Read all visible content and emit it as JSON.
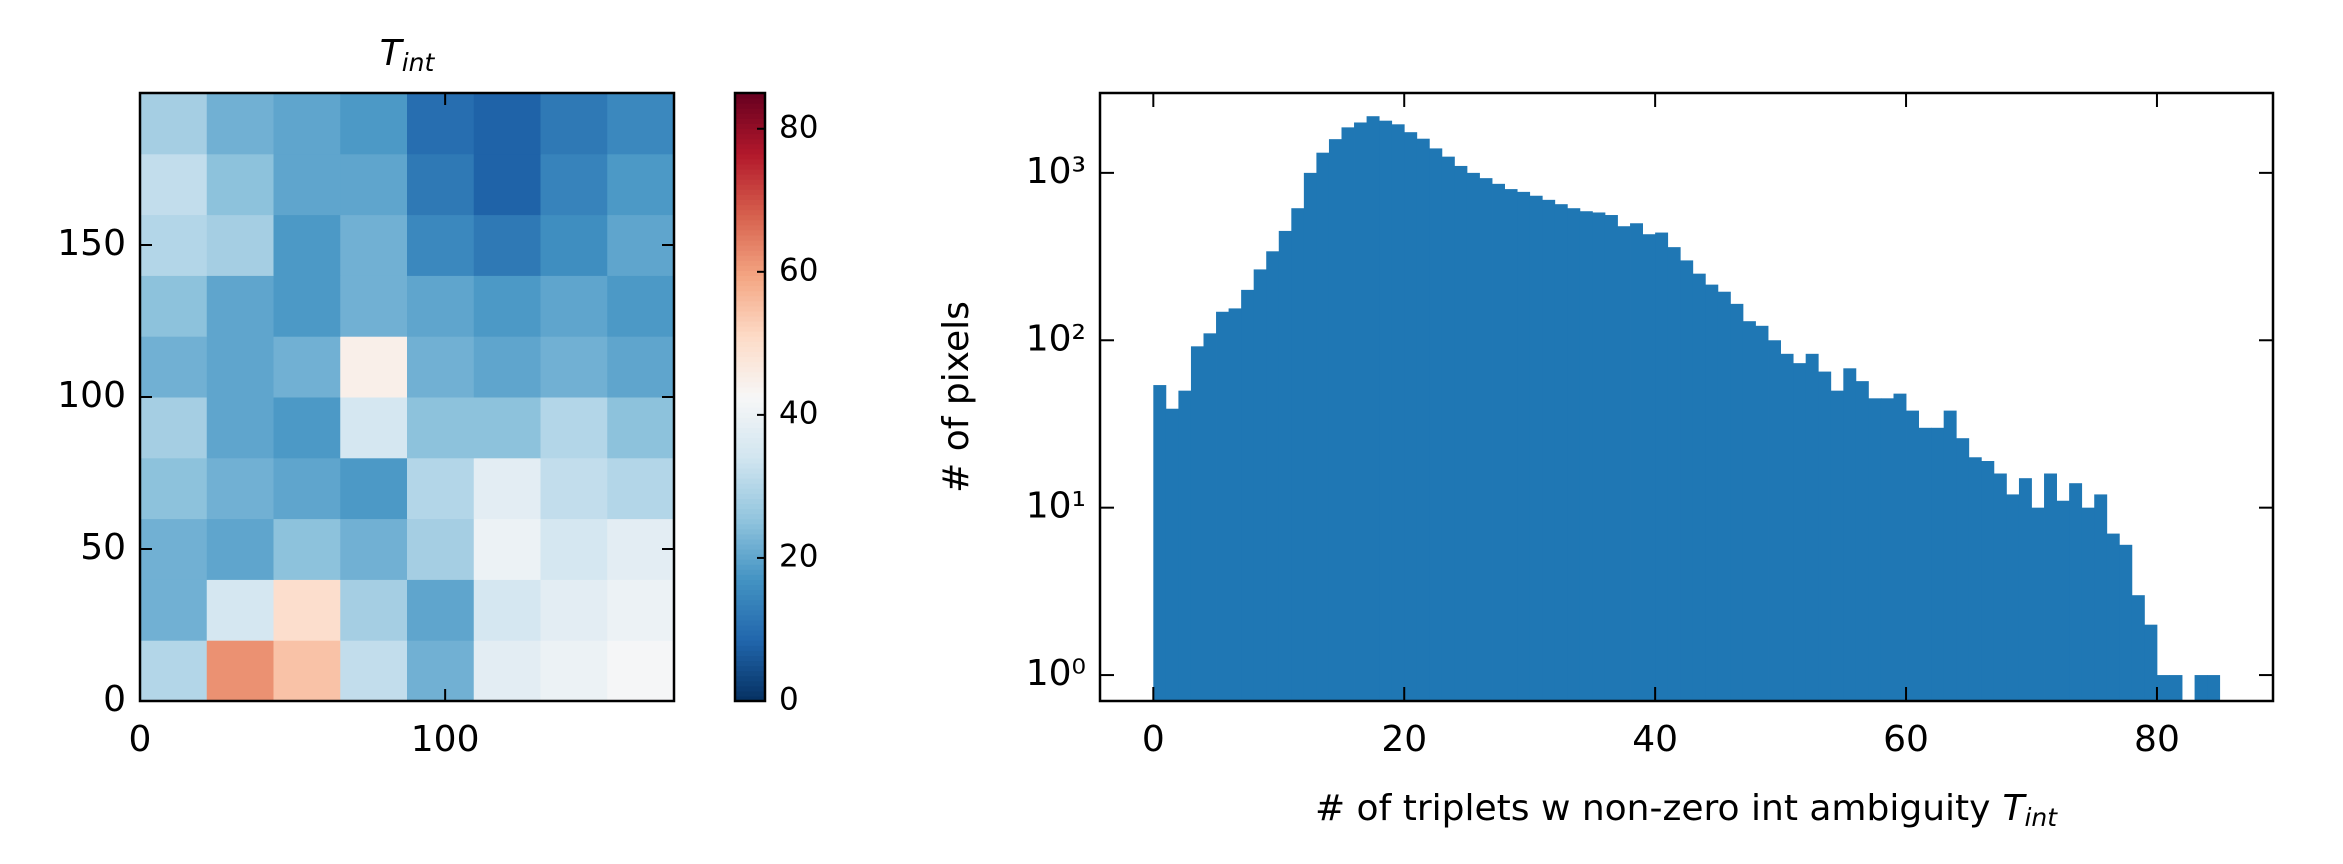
{
  "chart_data": [
    {
      "type": "heatmap",
      "title": "T",
      "title_subscript": "int",
      "colormap": "RdBu_r",
      "xlim": [
        0,
        175
      ],
      "ylim": [
        0,
        200
      ],
      "xticks": [
        0,
        100
      ],
      "yticks": [
        0,
        50,
        100,
        150
      ],
      "z": [
        [
          30,
          62,
          55,
          32,
          22,
          38,
          40,
          42
        ],
        [
          22,
          35,
          50,
          28,
          20,
          35,
          38,
          40
        ],
        [
          22,
          20,
          25,
          22,
          28,
          40,
          35,
          38
        ],
        [
          25,
          22,
          20,
          18,
          30,
          38,
          32,
          30
        ],
        [
          28,
          20,
          18,
          35,
          25,
          25,
          30,
          25
        ],
        [
          22,
          20,
          22,
          45,
          22,
          20,
          22,
          20
        ],
        [
          25,
          20,
          18,
          22,
          20,
          18,
          20,
          18
        ],
        [
          30,
          28,
          18,
          22,
          15,
          12,
          16,
          20
        ],
        [
          32,
          25,
          20,
          20,
          12,
          8,
          14,
          18
        ],
        [
          28,
          22,
          20,
          18,
          10,
          8,
          12,
          15
        ]
      ],
      "colorbar": {
        "lim": [
          0,
          85
        ],
        "ticks": [
          0,
          20,
          40,
          60,
          80
        ]
      }
    },
    {
      "type": "histogram",
      "color": "#1f77b4",
      "yscale": "log",
      "xlabel": "# of triplets w non-zero int ambiguity",
      "xlabel_math": "T",
      "xlabel_subscript": "int",
      "ylabel": "# of pixels",
      "xlim": [
        -4.25,
        89.25
      ],
      "xticks": [
        0,
        20,
        40,
        60,
        80
      ],
      "ylim": [
        0.7,
        3000
      ],
      "yticks": [
        {
          "value": 1,
          "label": "10⁰"
        },
        {
          "value": 10,
          "label": "10¹"
        },
        {
          "value": 100,
          "label": "10²"
        },
        {
          "value": 1000,
          "label": "10³"
        }
      ],
      "bins": [
        0,
        1,
        2,
        3,
        4,
        5,
        6,
        7,
        8,
        9,
        10,
        11,
        12,
        13,
        14,
        15,
        16,
        17,
        18,
        19,
        20,
        21,
        22,
        23,
        24,
        25,
        26,
        27,
        28,
        29,
        30,
        31,
        32,
        33,
        34,
        35,
        36,
        37,
        38,
        39,
        40,
        41,
        42,
        43,
        44,
        45,
        46,
        47,
        48,
        49,
        50,
        51,
        52,
        53,
        54,
        55,
        56,
        57,
        58,
        59,
        60,
        61,
        62,
        63,
        64,
        65,
        66,
        67,
        68,
        69,
        70,
        71,
        72,
        73,
        74,
        75,
        76,
        77,
        78,
        79,
        80,
        81,
        82,
        83,
        84,
        85
      ],
      "values": [
        54,
        39,
        50,
        92,
        110,
        148,
        155,
        200,
        265,
        340,
        450,
        615,
        1000,
        1320,
        1590,
        1870,
        2000,
        2180,
        2050,
        1950,
        1750,
        1600,
        1400,
        1250,
        1100,
        1000,
        930,
        860,
        800,
        770,
        730,
        690,
        650,
        615,
        590,
        580,
        560,
        480,
        500,
        430,
        440,
        360,
        300,
        250,
        215,
        195,
        165,
        130,
        122,
        100,
        83,
        73,
        83,
        65,
        50,
        68,
        57,
        45,
        45,
        48,
        38,
        30,
        30,
        38,
        26,
        20,
        19,
        16,
        12,
        15,
        10,
        16,
        11,
        14,
        10,
        12,
        7,
        6,
        3,
        2,
        1,
        1,
        0,
        1,
        1
      ]
    }
  ]
}
